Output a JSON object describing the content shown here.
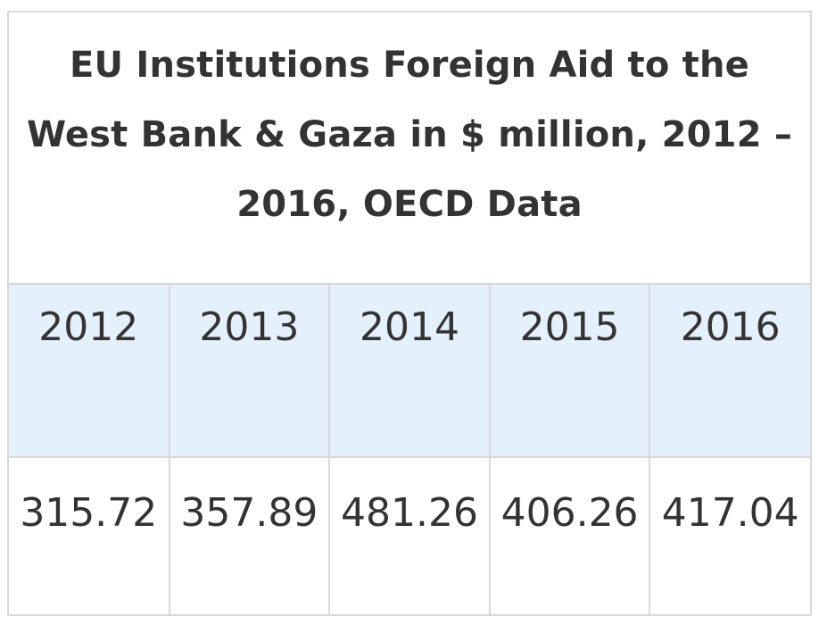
{
  "table": {
    "title": "EU Institutions Foreign Aid to the West Bank & Gaza in $ million, 2012 – 2016, OECD Data",
    "years": [
      "2012",
      "2013",
      "2014",
      "2015",
      "2016"
    ],
    "values": [
      "315.72",
      "357.89",
      "481.26",
      "406.26",
      "417.04"
    ]
  },
  "colors": {
    "header_row_background": "#e4f0fb",
    "border": "#d9d9d9",
    "text": "#333333"
  }
}
